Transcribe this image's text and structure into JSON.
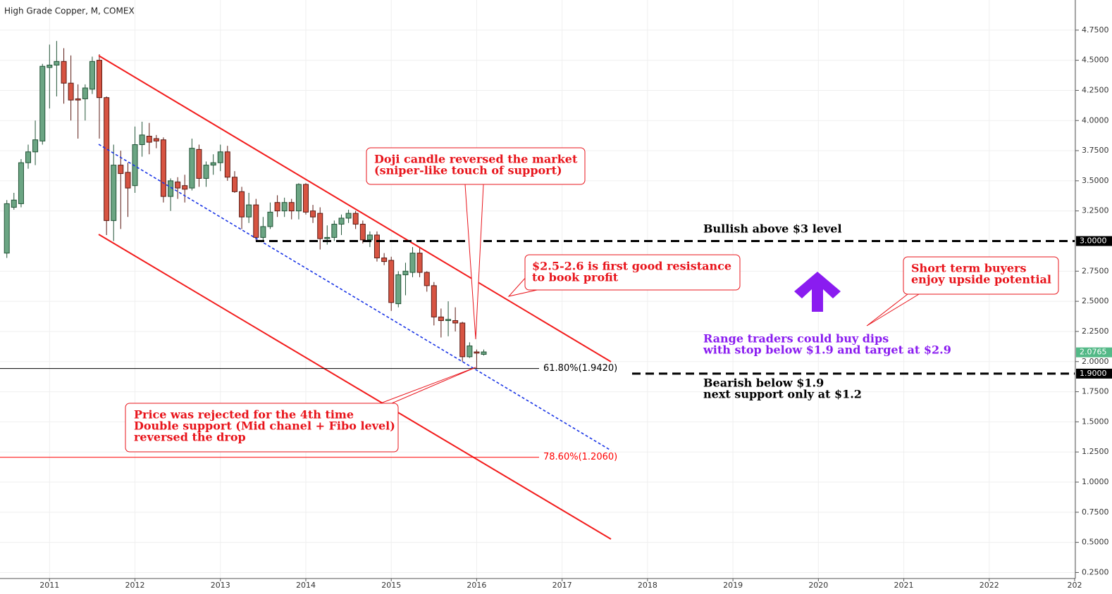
{
  "chart_data": {
    "type": "candlestick",
    "title": "High Grade Copper, M, COMEX",
    "x": [
      2010.5,
      2010.583,
      2010.667,
      2010.75,
      2010.833,
      2010.917,
      2011,
      2011.083,
      2011.167,
      2011.25,
      2011.333,
      2011.417,
      2011.5,
      2011.583,
      2011.667,
      2011.75,
      2011.833,
      2011.917,
      2012,
      2012.083,
      2012.167,
      2012.25,
      2012.333,
      2012.417,
      2012.5,
      2012.583,
      2012.667,
      2012.75,
      2012.833,
      2012.917,
      2013,
      2013.083,
      2013.167,
      2013.25,
      2013.333,
      2013.417,
      2013.5,
      2013.583,
      2013.667,
      2013.75,
      2013.833,
      2013.917,
      2014,
      2014.083,
      2014.167,
      2014.25,
      2014.333,
      2014.417,
      2014.5,
      2014.583,
      2014.667,
      2014.75,
      2014.833,
      2014.917,
      2015,
      2015.083,
      2015.167,
      2015.25,
      2015.333,
      2015.417,
      2015.5,
      2015.583,
      2015.667,
      2015.75,
      2015.833,
      2015.917,
      2016,
      2016.083
    ],
    "open": [
      2.9,
      3.28,
      3.31,
      3.65,
      3.74,
      3.83,
      4.44,
      4.46,
      4.49,
      4.31,
      4.18,
      4.18,
      4.26,
      4.5,
      4.19,
      3.17,
      3.63,
      3.57,
      3.46,
      3.8,
      3.87,
      3.85,
      3.84,
      3.37,
      3.49,
      3.46,
      3.44,
      3.76,
      3.52,
      3.63,
      3.65,
      3.74,
      3.53,
      3.41,
      3.2,
      3.3,
      3.03,
      3.12,
      3.32,
      3.25,
      3.32,
      3.25,
      3.47,
      3.25,
      3.23,
      3.02,
      3.03,
      3.14,
      3.19,
      3.23,
      3.14,
      3.01,
      3.05,
      2.86,
      2.84,
      2.48,
      2.72,
      2.74,
      2.9,
      2.74,
      2.63,
      2.37,
      2.34,
      2.34,
      2.32,
      2.04,
      2.08,
      2.06
    ],
    "high": [
      3.34,
      3.4,
      3.68,
      3.8,
      4.0,
      4.47,
      4.63,
      4.66,
      4.6,
      4.54,
      4.3,
      4.3,
      4.53,
      4.55,
      4.2,
      3.8,
      3.75,
      3.65,
      3.95,
      3.99,
      3.98,
      3.88,
      3.86,
      3.52,
      3.53,
      3.55,
      3.85,
      3.8,
      3.66,
      3.72,
      3.8,
      3.79,
      3.58,
      3.45,
      3.4,
      3.35,
      3.2,
      3.32,
      3.38,
      3.36,
      3.35,
      3.48,
      3.48,
      3.3,
      3.28,
      3.13,
      3.17,
      3.22,
      3.26,
      3.25,
      3.17,
      3.08,
      3.08,
      2.9,
      2.87,
      2.75,
      2.82,
      2.95,
      2.95,
      2.75,
      2.66,
      2.44,
      2.5,
      2.45,
      2.33,
      2.16,
      2.1,
      2.1
    ],
    "low": [
      2.86,
      3.26,
      3.28,
      3.6,
      3.63,
      3.8,
      4.1,
      4.2,
      4.14,
      4.0,
      3.85,
      4.0,
      4.22,
      3.85,
      3.05,
      3.0,
      3.1,
      3.2,
      3.4,
      3.7,
      3.72,
      3.77,
      3.32,
      3.25,
      3.35,
      3.32,
      3.42,
      3.45,
      3.45,
      3.55,
      3.58,
      3.5,
      3.4,
      3.1,
      3.15,
      3.0,
      3.0,
      3.1,
      3.2,
      3.2,
      3.18,
      3.18,
      3.22,
      3.15,
      2.93,
      2.97,
      3.0,
      3.05,
      3.15,
      3.1,
      2.98,
      2.95,
      2.83,
      2.8,
      2.42,
      2.45,
      2.55,
      2.7,
      2.7,
      2.58,
      2.3,
      2.2,
      2.21,
      2.25,
      2.0,
      2.03,
      1.94,
      2.05
    ],
    "close": [
      3.31,
      3.34,
      3.65,
      3.74,
      3.84,
      4.45,
      4.46,
      4.49,
      4.31,
      4.17,
      4.17,
      4.27,
      4.49,
      4.19,
      3.17,
      3.63,
      3.56,
      3.44,
      3.8,
      3.88,
      3.82,
      3.83,
      3.37,
      3.5,
      3.44,
      3.43,
      3.77,
      3.52,
      3.63,
      3.65,
      3.74,
      3.53,
      3.41,
      3.2,
      3.3,
      3.03,
      3.12,
      3.24,
      3.25,
      3.32,
      3.25,
      3.47,
      3.24,
      3.2,
      3.02,
      3.03,
      3.14,
      3.19,
      3.23,
      3.14,
      3.01,
      3.05,
      2.86,
      2.83,
      2.49,
      2.72,
      2.75,
      2.9,
      2.74,
      2.63,
      2.37,
      2.34,
      2.35,
      2.32,
      2.04,
      2.13,
      2.07,
      2.08
    ],
    "up_color": "#6ba583",
    "down_color": "#d75442",
    "up_border": "#225437",
    "down_border": "#5b1a13",
    "xlim": [
      2010.42,
      2023.0
    ],
    "ylim": [
      0.2,
      5.0
    ],
    "xticks": [
      2011,
      2012,
      2013,
      2014,
      2015,
      2016,
      2017,
      2018,
      2019,
      2020,
      2021,
      2022,
      {
        "value": 2023,
        "label": "202"
      }
    ],
    "yticks": [
      {
        "value": 0.25,
        "label": "0.2500"
      },
      {
        "value": 0.5,
        "label": "0.5000"
      },
      {
        "value": 0.75,
        "label": "0.7500"
      },
      {
        "value": 1,
        "label": "1.0000"
      },
      {
        "value": 1.25,
        "label": "1.2500"
      },
      {
        "value": 1.5,
        "label": "1.5000"
      },
      {
        "value": 1.75,
        "label": "1.7500"
      },
      {
        "value": 2,
        "label": "2.0000"
      },
      {
        "value": 2.25,
        "label": "2.2500"
      },
      {
        "value": 2.5,
        "label": "2.5000"
      },
      {
        "value": 2.75,
        "label": "2.7500"
      },
      {
        "value": 3.25,
        "label": "3.2500"
      },
      {
        "value": 3.5,
        "label": "3.5000"
      },
      {
        "value": 3.75,
        "label": "3.7500"
      },
      {
        "value": 4,
        "label": "4.0000"
      },
      {
        "value": 4.25,
        "label": "4.2500"
      },
      {
        "value": 4.5,
        "label": "4.5000"
      },
      {
        "value": 4.75,
        "label": "4.7500"
      }
    ],
    "grid": true,
    "last_price": {
      "value": 2.0765,
      "label": "2.0765",
      "color": "#53b987"
    },
    "levels": [
      {
        "value": 3,
        "label": "3.0000"
      },
      {
        "value": 1.9,
        "label": "1.9000"
      }
    ],
    "fib_levels": [
      {
        "value": 1.942,
        "label": "61.80%(1.9420)",
        "color": "#000000"
      },
      {
        "value": 1.206,
        "label": "78.60%(1.2060)",
        "color": "#ff0000"
      }
    ],
    "annotations": [
      {
        "lines": [
          "Doji candle reversed the market",
          "(sniper-like touch of support)"
        ],
        "color": "#e8141b"
      },
      {
        "lines": [
          "$2.5-2.6 is first good resistance",
          "to book profit"
        ],
        "color": "#e8141b"
      },
      {
        "lines": [
          "Price was rejected for the 4th time",
          "Double support (Mid chanel + Fibo level)",
          "reversed the drop"
        ],
        "color": "#e8141b"
      },
      {
        "lines": [
          "Short term buyers",
          "enjoy upside potential"
        ],
        "color": "#e8141b"
      },
      {
        "lines": [
          "Range traders could buy dips",
          "with stop below $1.9 and target at $2.9"
        ],
        "color": "#8a1cf0"
      },
      {
        "lines": [
          "Bullish above $3 level"
        ],
        "color": "#000000"
      },
      {
        "lines": [
          "Bearish below $1.9",
          "next support only at $1.2"
        ],
        "color": "#000000"
      }
    ]
  }
}
